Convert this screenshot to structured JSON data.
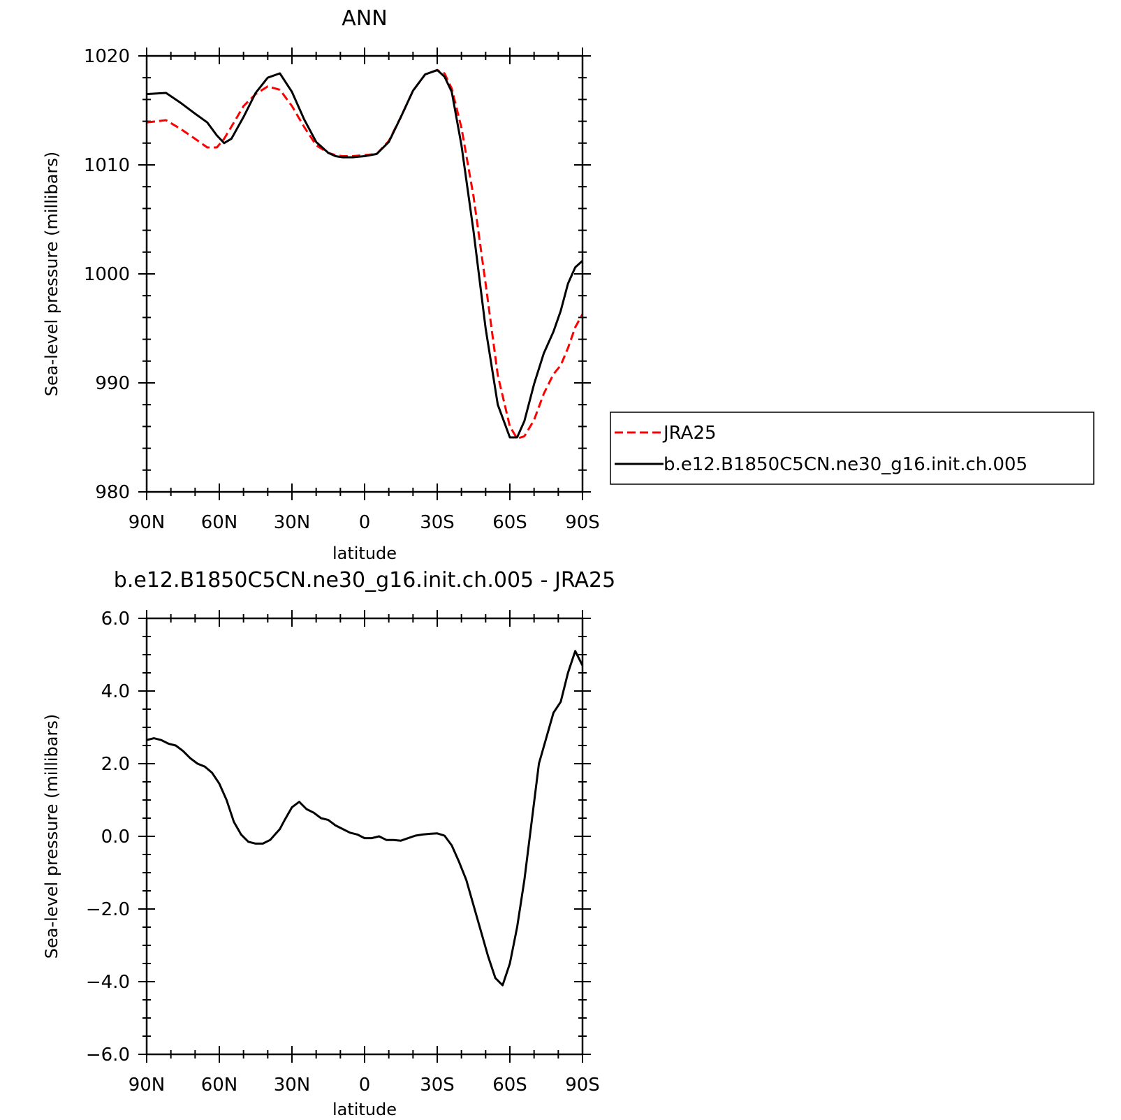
{
  "chart_data": [
    {
      "type": "line",
      "title": "ANN",
      "xlabel": "latitude",
      "ylabel": "Sea-level pressure (millibars)",
      "xlim": [
        -90,
        90
      ],
      "ylim": [
        980,
        1020
      ],
      "x_tick_values": [
        -90,
        -60,
        -30,
        0,
        30,
        60,
        90
      ],
      "x_tick_labels": [
        "90N",
        "60N",
        "30N",
        "0",
        "30S",
        "60S",
        "90S"
      ],
      "y_tick_values": [
        980,
        990,
        1000,
        1010,
        1020
      ],
      "y_tick_labels": [
        "980",
        "990",
        "1000",
        "1010",
        "1020"
      ],
      "grid": false,
      "legend_position": "outside-right",
      "x": [
        -90,
        -82,
        -76,
        -70,
        -65,
        -61,
        -58,
        -55,
        -50,
        -45,
        -40,
        -35,
        -30,
        -25,
        -20,
        -15,
        -12,
        -9,
        -5,
        0,
        5,
        10,
        15,
        20,
        25,
        30,
        33,
        36,
        40,
        45,
        50,
        55,
        60,
        63,
        66,
        70,
        74,
        78,
        81,
        84,
        87,
        90
      ],
      "series": [
        {
          "name": "JRA25",
          "color": "#ff0000",
          "dash": "dashed",
          "values": [
            1013.9,
            1014.1,
            1013.3,
            1012.4,
            1011.6,
            1011.6,
            1012.4,
            1013.5,
            1015.4,
            1016.5,
            1017.2,
            1016.9,
            1015.4,
            1013.5,
            1011.8,
            1011.1,
            1010.9,
            1010.8,
            1010.8,
            1010.9,
            1011.0,
            1012.2,
            1014.4,
            1016.8,
            1018.3,
            1018.7,
            1018.4,
            1017.0,
            1013.4,
            1007.1,
            999.1,
            990.7,
            986.0,
            984.9,
            985.1,
            986.6,
            989.0,
            990.8,
            991.6,
            993.2,
            995.1,
            996.3
          ]
        },
        {
          "name": "b.e12.B1850C5CN.ne30_g16.init.ch.005",
          "color": "#000000",
          "dash": "solid",
          "values": [
            1016.5,
            1016.6,
            1015.7,
            1014.7,
            1013.9,
            1012.7,
            1012.0,
            1012.4,
            1014.4,
            1016.6,
            1018.0,
            1018.4,
            1016.7,
            1014.2,
            1012.1,
            1011.1,
            1010.8,
            1010.7,
            1010.7,
            1010.8,
            1011.0,
            1012.1,
            1014.4,
            1016.8,
            1018.3,
            1018.7,
            1018.1,
            1016.7,
            1011.8,
            1003.9,
            995.0,
            988.0,
            985.0,
            985.0,
            986.5,
            989.9,
            992.7,
            994.7,
            996.6,
            999.1,
            1000.6,
            1001.2
          ]
        }
      ]
    },
    {
      "type": "line",
      "title": "b.e12.B1850C5CN.ne30_g16.init.ch.005 - JRA25",
      "xlabel": "latitude",
      "ylabel": "Sea-level pressure (millibars)",
      "xlim": [
        -90,
        90
      ],
      "ylim": [
        -6,
        6
      ],
      "x_tick_values": [
        -90,
        -60,
        -30,
        0,
        30,
        60,
        90
      ],
      "x_tick_labels": [
        "90N",
        "60N",
        "30N",
        "0",
        "30S",
        "60S",
        "90S"
      ],
      "y_tick_values": [
        -6,
        -4,
        -2,
        0,
        2,
        4,
        6
      ],
      "y_tick_labels": [
        "−6.0",
        "−4.0",
        "−2.0",
        "0.0",
        "2.0",
        "4.0",
        "6.0"
      ],
      "grid": false,
      "x": [
        -90,
        -87,
        -84,
        -81,
        -78,
        -75,
        -72,
        -69,
        -66,
        -63,
        -60,
        -57,
        -54,
        -51,
        -48,
        -45,
        -42,
        -39,
        -37,
        -35,
        -33,
        -30,
        -27,
        -24,
        -21,
        -18,
        -15,
        -12,
        -9,
        -6,
        -3,
        0,
        3,
        6,
        9,
        12,
        15,
        18,
        21,
        24,
        27,
        30,
        33,
        36,
        39,
        42,
        45,
        48,
        51,
        54,
        57,
        60,
        63,
        66,
        69,
        72,
        75,
        78,
        81,
        84,
        87,
        90
      ],
      "series": [
        {
          "name": "",
          "color": "#000000",
          "dash": "solid",
          "values": [
            2.65,
            2.7,
            2.65,
            2.55,
            2.5,
            2.35,
            2.15,
            2.0,
            1.92,
            1.75,
            1.45,
            1.0,
            0.4,
            0.05,
            -0.15,
            -0.2,
            -0.2,
            -0.1,
            0.05,
            0.2,
            0.45,
            0.8,
            0.95,
            0.75,
            0.65,
            0.5,
            0.45,
            0.3,
            0.2,
            0.1,
            0.05,
            -0.05,
            -0.05,
            0.0,
            -0.1,
            -0.1,
            -0.12,
            -0.05,
            0.02,
            0.05,
            0.07,
            0.08,
            0.02,
            -0.25,
            -0.7,
            -1.2,
            -1.9,
            -2.6,
            -3.3,
            -3.9,
            -4.1,
            -3.5,
            -2.5,
            -1.2,
            0.4,
            2.0,
            2.7,
            3.4,
            3.7,
            4.5,
            5.1,
            4.7
          ]
        }
      ]
    }
  ],
  "legend": {
    "entries": [
      {
        "label": "JRA25",
        "color": "#ff0000",
        "dash": "dashed"
      },
      {
        "label": "b.e12.B1850C5CN.ne30_g16.init.ch.005",
        "color": "#000000",
        "dash": "solid"
      }
    ]
  }
}
